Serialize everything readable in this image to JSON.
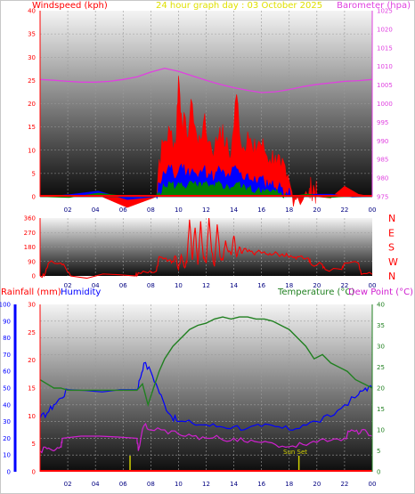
{
  "colors": {
    "windspeed": "#ff0000",
    "gust": "#ff0000",
    "wind_avg_blue": "#0000ff",
    "wind_low_green": "#008000",
    "barometer": "#e040e0",
    "direction": "#ff0000",
    "temperature": "#208020",
    "dewpoint": "#d020d0",
    "humidity": "#0000ff",
    "rainfall": "#ff0000",
    "sun": "#d0d000",
    "title": "#e0e000",
    "grid": "#9a9a9a"
  },
  "chart_data": [
    {
      "type": "area",
      "panel": "wind-barometer",
      "title": "24 hour graph day : 03 October 2025",
      "left_label": "Windspeed (kph)",
      "right_label": "Barometer (hpa)",
      "x_ticks": [
        "02",
        "04",
        "06",
        "08",
        "10",
        "12",
        "14",
        "16",
        "18",
        "20",
        "22",
        "00"
      ],
      "left_ticks": [
        "0",
        "5",
        "10",
        "15",
        "20",
        "25",
        "30",
        "35",
        "40"
      ],
      "right_ticks": [
        "975",
        "980",
        "985",
        "990",
        "995",
        "1000",
        "1005",
        "1010",
        "1015",
        "1020",
        "1025"
      ],
      "ylim_left": [
        0,
        40
      ],
      "ylim_right": [
        975,
        1025
      ],
      "barometer": {
        "x": [
          0,
          1,
          2,
          3,
          4,
          5,
          6,
          7,
          8,
          9,
          10,
          11,
          12,
          13,
          14,
          15,
          16,
          17,
          18,
          19,
          20,
          21,
          22,
          23,
          24
        ],
        "y": [
          1006.5,
          1006.3,
          1006.0,
          1005.8,
          1005.8,
          1006.0,
          1006.5,
          1007.2,
          1008.5,
          1009.5,
          1008.7,
          1007.5,
          1006.3,
          1005.2,
          1004.3,
          1003.6,
          1003.0,
          1003.2,
          1003.8,
          1004.6,
          1005.2,
          1005.6,
          1006.0,
          1006.2,
          1006.5
        ]
      },
      "wind_gust": {
        "x": [
          0,
          8.4,
          8.6,
          9.0,
          9.4,
          9.8,
          10.0,
          10.2,
          10.6,
          11.0,
          11.4,
          11.8,
          12.2,
          12.6,
          13.0,
          13.4,
          13.8,
          14.2,
          14.6,
          15.0,
          15.4,
          15.8,
          16.2,
          16.6,
          17.0,
          17.4,
          17.8,
          18.2,
          18.6,
          19.4,
          19.6,
          19.8,
          20.0,
          24
        ],
        "y": [
          0,
          0,
          8,
          12,
          14,
          11,
          26,
          18,
          13,
          20,
          11,
          16,
          12,
          10,
          15,
          11,
          9,
          22,
          10,
          14,
          9,
          12,
          10,
          8,
          9,
          6,
          4,
          1,
          0,
          0,
          2,
          2,
          0,
          0
        ]
      },
      "wind_speed": {
        "x": [
          0,
          8.4,
          8.6,
          9.0,
          9.4,
          9.8,
          10.2,
          10.6,
          11.0,
          11.4,
          11.8,
          12.2,
          12.6,
          13.0,
          13.4,
          13.8,
          14.2,
          14.6,
          15.0,
          15.4,
          15.8,
          16.2,
          16.6,
          17.0,
          17.4,
          17.8,
          18.2,
          24
        ],
        "y": [
          0,
          0,
          3,
          5,
          6,
          4,
          7,
          5,
          6,
          4,
          6,
          5,
          4,
          6,
          4,
          5,
          6,
          4,
          5,
          3,
          4,
          3,
          3,
          2,
          2,
          1,
          0,
          0
        ]
      },
      "wind_low": {
        "x": [
          0,
          8.4,
          8.6,
          9.0,
          9.4,
          9.8,
          10.2,
          10.6,
          11.0,
          11.4,
          11.8,
          12.2,
          12.6,
          13.0,
          13.4,
          13.8,
          14.2,
          14.6,
          15.0,
          15.4,
          15.8,
          16.2,
          16.6,
          17.0,
          17.4,
          17.8,
          24
        ],
        "y": [
          0,
          0,
          1,
          2,
          3,
          2,
          3,
          2,
          3,
          2,
          3,
          2,
          2,
          3,
          2,
          2,
          3,
          2,
          2,
          1,
          2,
          1,
          1,
          1,
          1,
          0,
          0
        ]
      }
    },
    {
      "type": "line",
      "panel": "wind-direction",
      "x_ticks": [
        "02",
        "04",
        "06",
        "08",
        "10",
        "12",
        "14",
        "16",
        "18",
        "20",
        "22",
        "00"
      ],
      "left_ticks": [
        "0",
        "90",
        "180",
        "270",
        "360"
      ],
      "right_ticks": [
        "N",
        "W",
        "S",
        "E",
        "N"
      ],
      "ylim": [
        0,
        360
      ],
      "direction": {
        "x": [
          0,
          0.3,
          0.6,
          1.5,
          1.9,
          2.2,
          6.9,
          7.1,
          7.8,
          8.4,
          8.6,
          9.0,
          9.4,
          9.6,
          9.8,
          10.0,
          10.2,
          10.4,
          10.6,
          10.8,
          11.0,
          11.2,
          11.4,
          11.6,
          11.8,
          12.0,
          12.2,
          12.4,
          12.6,
          12.8,
          13.0,
          13.2,
          13.4,
          13.6,
          13.8,
          14.0,
          14.2,
          14.4,
          14.6,
          14.8,
          15.0,
          15.4,
          15.8,
          16.2,
          16.6,
          17.0,
          17.4,
          17.8,
          18.2,
          18.6,
          19.0,
          19.4,
          19.6,
          20.4,
          20.6,
          21.8,
          22.0,
          23.0,
          23.2,
          24
        ],
        "y": [
          0,
          0,
          80,
          80,
          40,
          0,
          0,
          20,
          20,
          30,
          120,
          110,
          100,
          90,
          120,
          40,
          130,
          60,
          80,
          350,
          100,
          300,
          70,
          340,
          110,
          80,
          360,
          150,
          60,
          320,
          120,
          100,
          220,
          150,
          130,
          250,
          120,
          180,
          140,
          170,
          150,
          140,
          160,
          150,
          140,
          150,
          130,
          140,
          120,
          120,
          110,
          110,
          70,
          70,
          40,
          40,
          80,
          80,
          10,
          10
        ]
      }
    },
    {
      "type": "line",
      "panel": "temp-humidity-rain",
      "left_label_rain": "Rainfall (mm)",
      "left_label_humidity": "Humidity",
      "right_label_temp": "Temperature (°C)",
      "right_label_dew": "Dew Point (°C)",
      "annotation": "Sun Set",
      "x_ticks": [
        "02",
        "04",
        "06",
        "08",
        "10",
        "12",
        "14",
        "16",
        "18",
        "20",
        "22",
        "00"
      ],
      "humidity_ticks": [
        "0",
        "10",
        "20",
        "30",
        "40",
        "50",
        "60",
        "70",
        "80",
        "90",
        "100"
      ],
      "rain_ticks": [
        "0",
        "5",
        "10",
        "15",
        "20",
        "25",
        "30"
      ],
      "temp_ticks": [
        "0",
        "5",
        "10",
        "15",
        "20",
        "25",
        "30",
        "35",
        "40"
      ],
      "ylim_humidity": [
        0,
        100
      ],
      "ylim_rain": [
        0,
        30
      ],
      "ylim_temp": [
        0,
        40
      ],
      "sun_markers_hours": [
        6.5,
        18.7
      ],
      "temperature": {
        "x": [
          0,
          0.5,
          1.0,
          1.5,
          2.0,
          7.0,
          7.4,
          7.8,
          8.2,
          8.6,
          9.0,
          9.6,
          10.2,
          10.8,
          11.4,
          12.0,
          12.6,
          13.2,
          13.8,
          14.4,
          15.0,
          15.6,
          16.2,
          16.8,
          17.4,
          18.0,
          18.6,
          19.2,
          19.8,
          20.4,
          21.0,
          21.6,
          22.2,
          22.8,
          23.4,
          24
        ],
        "y": [
          22,
          21,
          20,
          20,
          19.5,
          19.5,
          21,
          16,
          20,
          24,
          27,
          30,
          32,
          34,
          35,
          35.5,
          36.5,
          37,
          36.5,
          37,
          37,
          36.5,
          36.5,
          36,
          35,
          34,
          32,
          30,
          27,
          28,
          26,
          25,
          24,
          22,
          21,
          20
        ]
      },
      "dewpoint": {
        "x": [
          0,
          0.5,
          1.0,
          1.5,
          1.6,
          7.0,
          7.1,
          7.5,
          8.0,
          9.0,
          10.0,
          11.0,
          12.0,
          13.0,
          14.0,
          15.0,
          16.0,
          17.0,
          18.0,
          19.0,
          20.0,
          21.0,
          22.0,
          22.5,
          23.0,
          23.5,
          24
        ],
        "y": [
          5,
          5.5,
          5,
          6,
          8,
          8,
          5,
          11,
          10,
          10,
          9,
          8.5,
          8,
          8,
          8,
          7,
          7,
          6.5,
          6,
          6.5,
          7,
          7.5,
          8,
          10,
          9,
          10,
          8.5
        ]
      },
      "humidity": {
        "x": [
          0,
          0.5,
          1.0,
          1.5,
          2.0,
          7.0,
          7.2,
          7.5,
          8.0,
          8.5,
          9.0,
          9.5,
          10.0,
          11.0,
          12.0,
          13.0,
          14.0,
          15.0,
          16.0,
          17.0,
          18.0,
          19.0,
          20.0,
          21.0,
          22.0,
          23.0,
          23.5,
          24
        ],
        "y": [
          32,
          35,
          40,
          44,
          49,
          49,
          55,
          65,
          60,
          50,
          40,
          33,
          30,
          29,
          28,
          27,
          27,
          26,
          27,
          27,
          25,
          28,
          30,
          33,
          40,
          46,
          50,
          50
        ]
      },
      "rainfall": {
        "x": [
          0,
          24
        ],
        "y": [
          0,
          0
        ]
      }
    }
  ]
}
